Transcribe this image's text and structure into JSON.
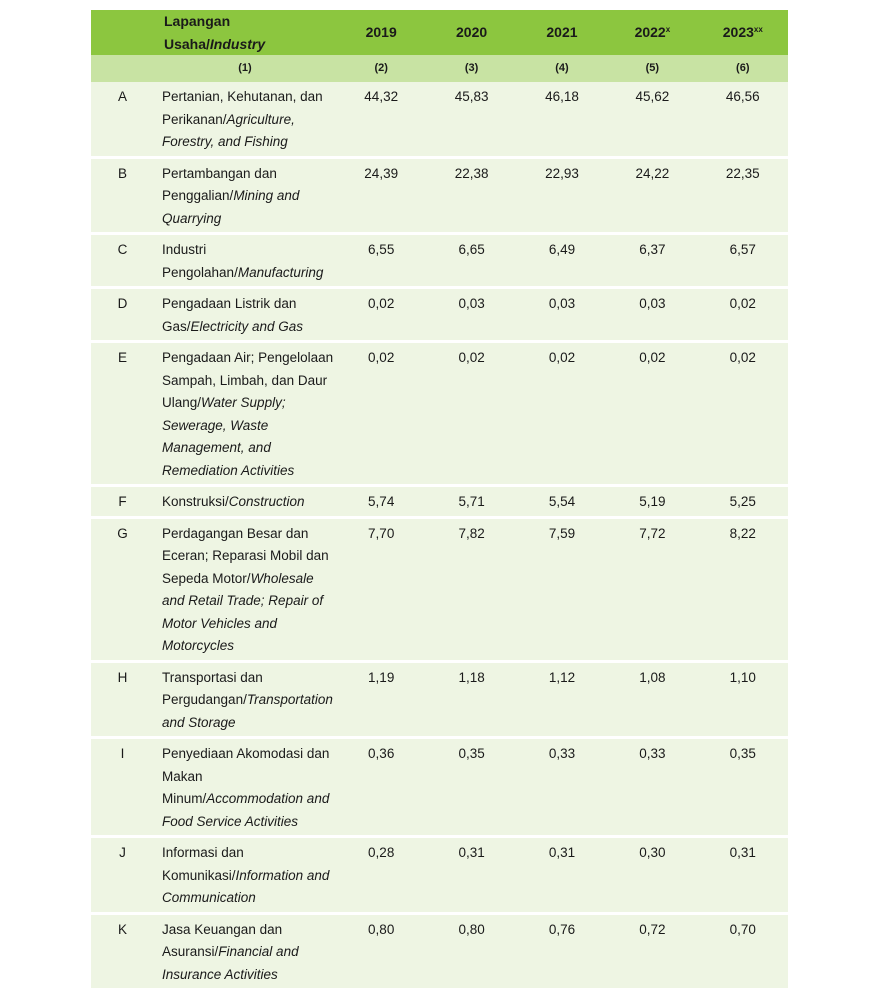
{
  "header": {
    "industry_id": "Lapangan Usaha/",
    "industry_en": "Industry",
    "years": [
      {
        "year": "2019",
        "mark": ""
      },
      {
        "year": "2020",
        "mark": ""
      },
      {
        "year": "2021",
        "mark": ""
      },
      {
        "year": "2022",
        "mark": "x"
      },
      {
        "year": "2023",
        "mark": "xx"
      }
    ],
    "col_numbers": [
      "(1)",
      "(2)",
      "(3)",
      "(4)",
      "(5)",
      "(6)"
    ]
  },
  "rows": [
    {
      "code": "A",
      "id": "Pertanian, Kehutanan, dan Perikanan/",
      "en": "Agriculture, Forestry, and Fishing",
      "values": [
        "44,32",
        "45,83",
        "46,18",
        "45,62",
        "46,56"
      ]
    },
    {
      "code": "B",
      "id": "Pertambangan dan Penggalian/",
      "en": "Mining and Quarrying",
      "values": [
        "24,39",
        "22,38",
        "22,93",
        "24,22",
        "22,35"
      ]
    },
    {
      "code": "C",
      "id": "Industri Pengolahan/",
      "en": "Manufacturing",
      "values": [
        "6,55",
        "6,65",
        "6,49",
        "6,37",
        "6,57"
      ]
    },
    {
      "code": "D",
      "id": "Pengadaan Listrik dan Gas/",
      "en": "Electricity and Gas",
      "values": [
        "0,02",
        "0,03",
        "0,03",
        "0,03",
        "0,02"
      ]
    },
    {
      "code": "E",
      "id": "Pengadaan Air; Pengelolaan Sampah, Limbah, dan Daur Ulang/",
      "en": "Water Supply; Sewerage, Waste Management, and Remediation Activities",
      "values": [
        "0,02",
        "0,02",
        "0,02",
        "0,02",
        "0,02"
      ]
    },
    {
      "code": "F",
      "id": "Konstruksi/",
      "en": "Construction",
      "values": [
        "5,74",
        "5,71",
        "5,54",
        "5,19",
        "5,25"
      ]
    },
    {
      "code": "G",
      "id": "Perdagangan Besar dan Eceran; Reparasi Mobil dan Sepeda Motor/",
      "en": "Wholesale and Retail Trade; Repair of Motor Vehicles and Motorcycles",
      "values": [
        "7,70",
        "7,82",
        "7,59",
        "7,72",
        "8,22"
      ]
    },
    {
      "code": "H",
      "id": "Transportasi dan Pergudangan/",
      "en": "Transportation and Storage",
      "values": [
        "1,19",
        "1,18",
        "1,12",
        "1,08",
        "1,10"
      ]
    },
    {
      "code": "I",
      "id": "Penyediaan Akomodasi dan Makan Minum/",
      "en": "Accommodation and Food Service Activities",
      "values": [
        "0,36",
        "0,35",
        "0,33",
        "0,33",
        "0,35"
      ]
    },
    {
      "code": "J",
      "id": "Informasi dan Komunikasi/",
      "en": "Information and Communication",
      "values": [
        "0,28",
        "0,31",
        "0,31",
        "0,30",
        "0,31"
      ]
    },
    {
      "code": "K",
      "id": "Jasa Keuangan dan Asuransi/",
      "en": "Financial and Insurance Activities",
      "values": [
        "0,80",
        "0,80",
        "0,76",
        "0,72",
        "0,70"
      ]
    }
  ]
}
